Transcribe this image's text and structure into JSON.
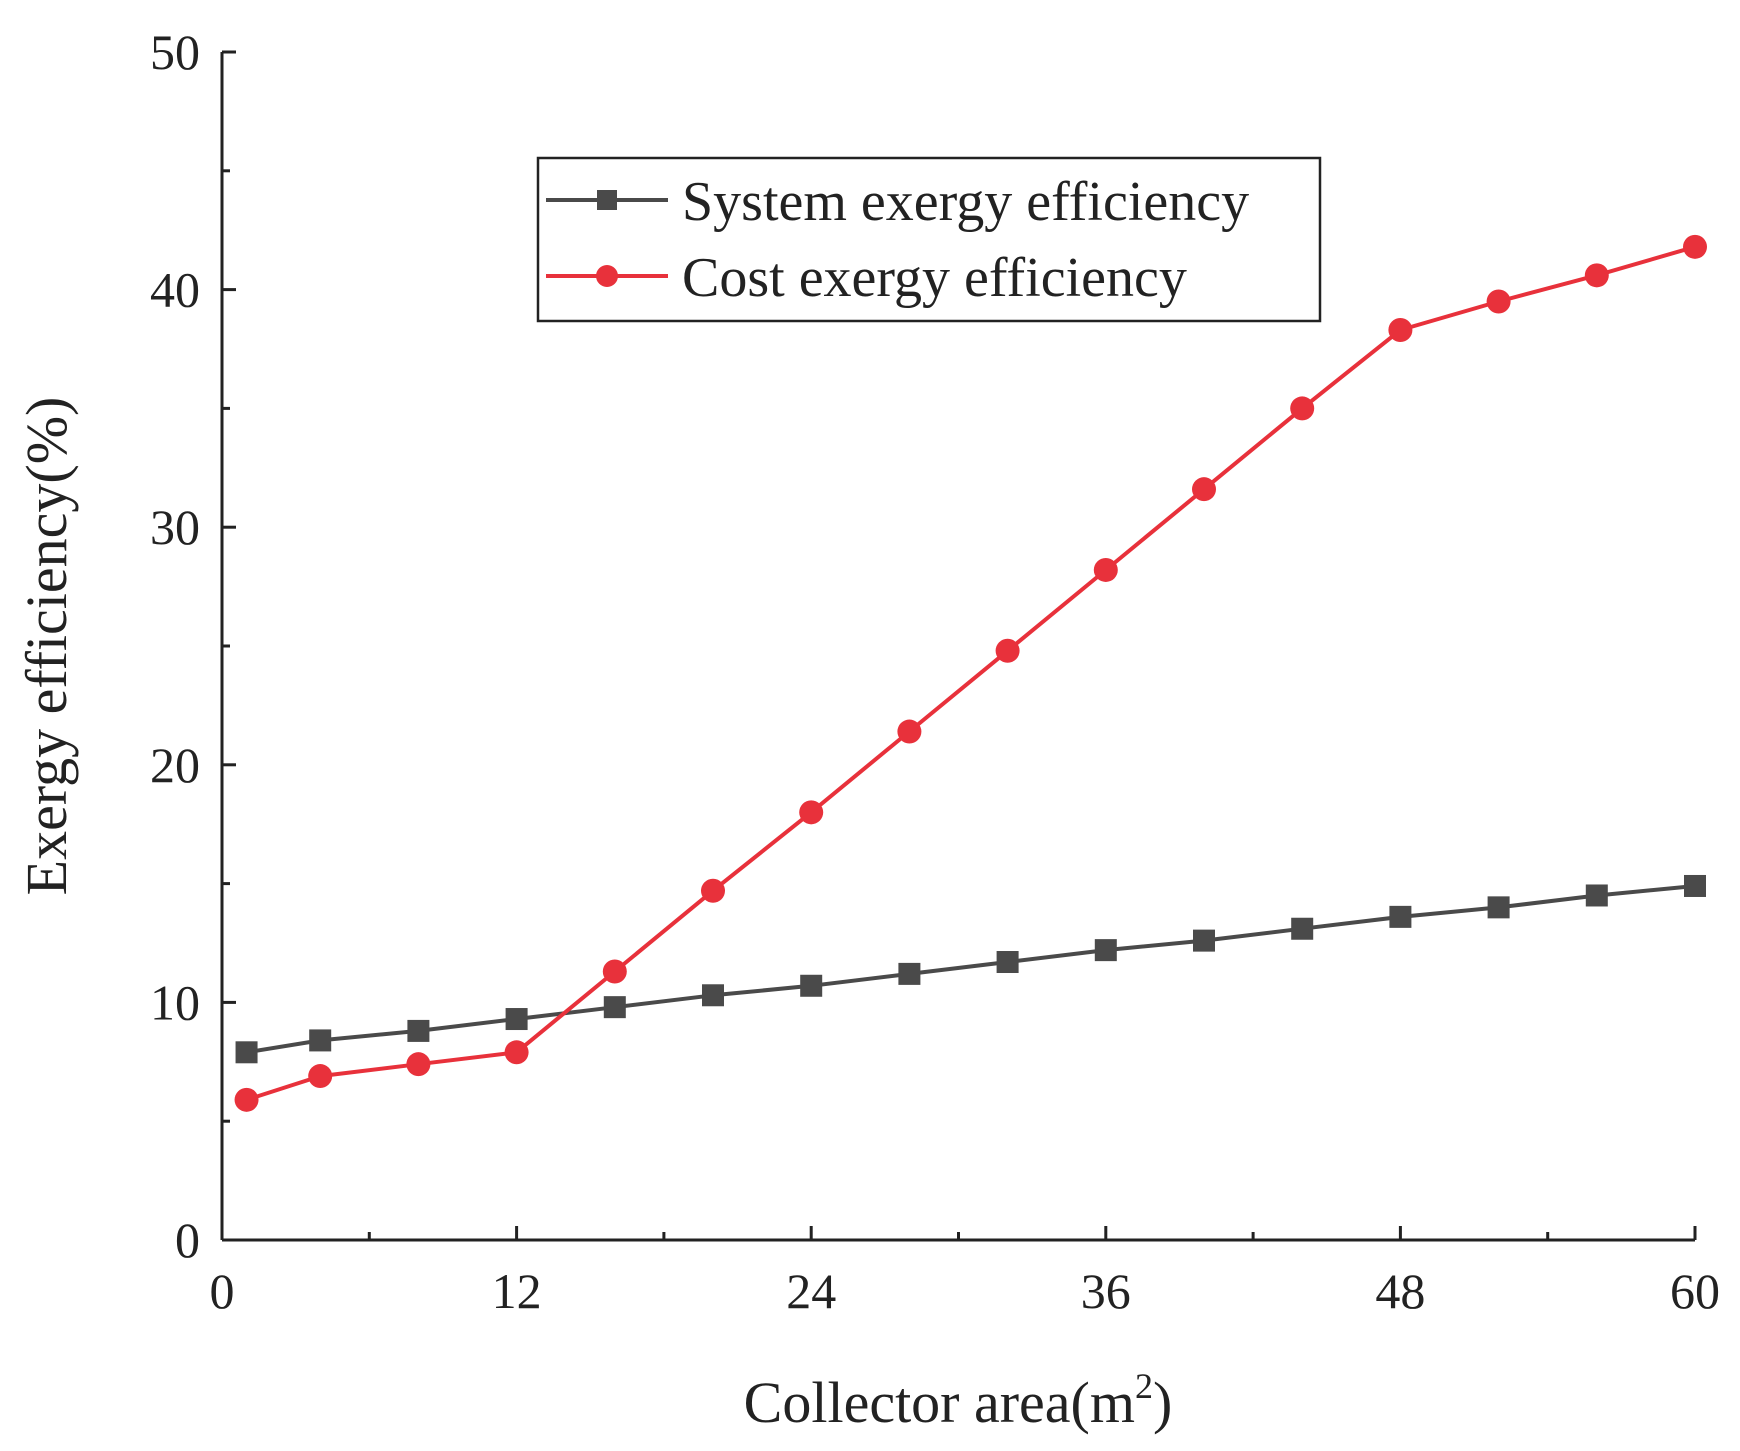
{
  "chart_data": {
    "type": "line",
    "title": "",
    "xlabel": "Collector area(m",
    "xlabel_superscript": "2",
    "xlabel_close": ")",
    "ylabel": "Exergy efficiency(%)",
    "xlim": [
      0,
      60
    ],
    "ylim": [
      0,
      50
    ],
    "x_ticks": [
      0,
      12,
      24,
      36,
      48,
      60
    ],
    "x_minor_ticks": [
      6,
      18,
      30,
      42,
      54
    ],
    "y_ticks": [
      0,
      10,
      20,
      30,
      40,
      50
    ],
    "y_minor_ticks": [
      5,
      15,
      25,
      35,
      45
    ],
    "x_tick_labels": [
      "0",
      "12",
      "24",
      "36",
      "48",
      "60"
    ],
    "y_tick_labels": [
      "0",
      "10",
      "20",
      "30",
      "40",
      "50"
    ],
    "grid": false,
    "legend_position": "top-center",
    "x": [
      1,
      4,
      8,
      12,
      16,
      20,
      24,
      28,
      32,
      36,
      40,
      44,
      48,
      52,
      56,
      60
    ],
    "series": [
      {
        "name": "System exergy efficiency",
        "color": "#4a4a4a",
        "marker": "square",
        "values": [
          7.9,
          8.4,
          8.8,
          9.3,
          9.8,
          10.3,
          10.7,
          11.2,
          11.7,
          12.2,
          12.6,
          13.1,
          13.6,
          14.0,
          14.5,
          14.9
        ]
      },
      {
        "name": "Cost exergy efficiency",
        "color": "#e8313b",
        "marker": "circle",
        "values": [
          5.9,
          6.9,
          7.4,
          7.9,
          11.3,
          14.7,
          18.0,
          21.4,
          24.8,
          28.2,
          31.6,
          35.0,
          38.3,
          39.5,
          40.6,
          41.8
        ]
      }
    ]
  }
}
